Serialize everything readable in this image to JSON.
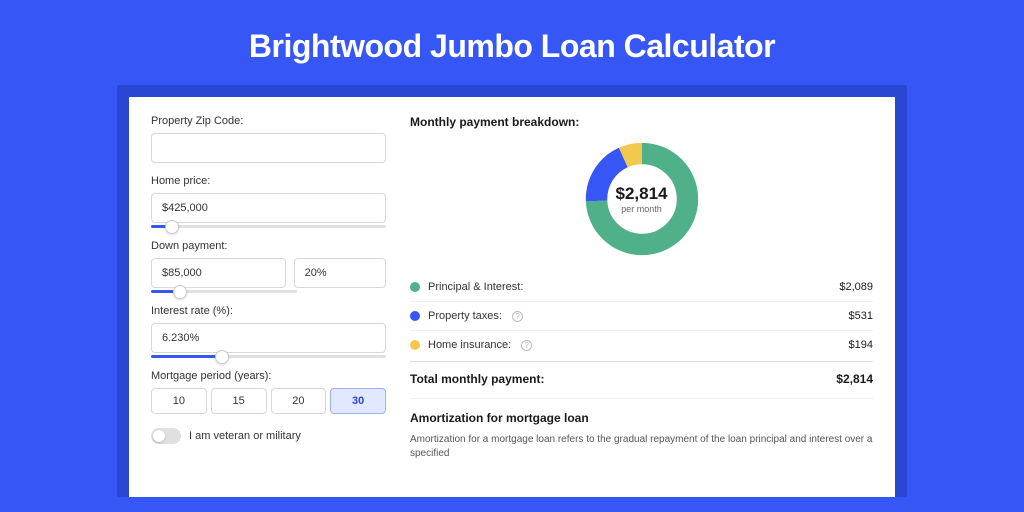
{
  "page": {
    "title": "Brightwood Jumbo Loan Calculator",
    "bg_color": "#3656f5",
    "outer_card_color": "#2a47d4",
    "inner_card_color": "#ffffff"
  },
  "form": {
    "zip": {
      "label": "Property Zip Code:",
      "value": ""
    },
    "home_price": {
      "label": "Home price:",
      "value": "$425,000",
      "slider_pct": 9
    },
    "down_payment": {
      "label": "Down payment:",
      "amount": "$85,000",
      "pct": "20%",
      "slider_pct": 20
    },
    "interest_rate": {
      "label": "Interest rate (%):",
      "value": "6.230%",
      "slider_pct": 30
    },
    "period": {
      "label": "Mortgage period (years):",
      "options": [
        "10",
        "15",
        "20",
        "30"
      ],
      "selected": "30"
    },
    "veteran": {
      "label": "I am veteran or military",
      "on": false
    }
  },
  "breakdown": {
    "title": "Monthly payment breakdown:",
    "donut": {
      "amount": "$2,814",
      "subtext": "per month",
      "slices": [
        {
          "key": "pi",
          "pct": 74.2,
          "color": "#4fb08a"
        },
        {
          "key": "tax",
          "pct": 18.9,
          "color": "#3656f5"
        },
        {
          "key": "ins",
          "pct": 6.9,
          "color": "#f2c94c"
        }
      ],
      "ring_bg": "#eeeeee"
    },
    "items": [
      {
        "label": "Principal & Interest:",
        "color": "#4fb08a",
        "value": "$2,089",
        "info": false
      },
      {
        "label": "Property taxes:",
        "color": "#3656f5",
        "value": "$531",
        "info": true
      },
      {
        "label": "Home insurance:",
        "color": "#f2c94c",
        "value": "$194",
        "info": true
      }
    ],
    "total": {
      "label": "Total monthly payment:",
      "value": "$2,814"
    }
  },
  "amortization": {
    "title": "Amortization for mortgage loan",
    "text": "Amortization for a mortgage loan refers to the gradual repayment of the loan principal and interest over a specified"
  }
}
